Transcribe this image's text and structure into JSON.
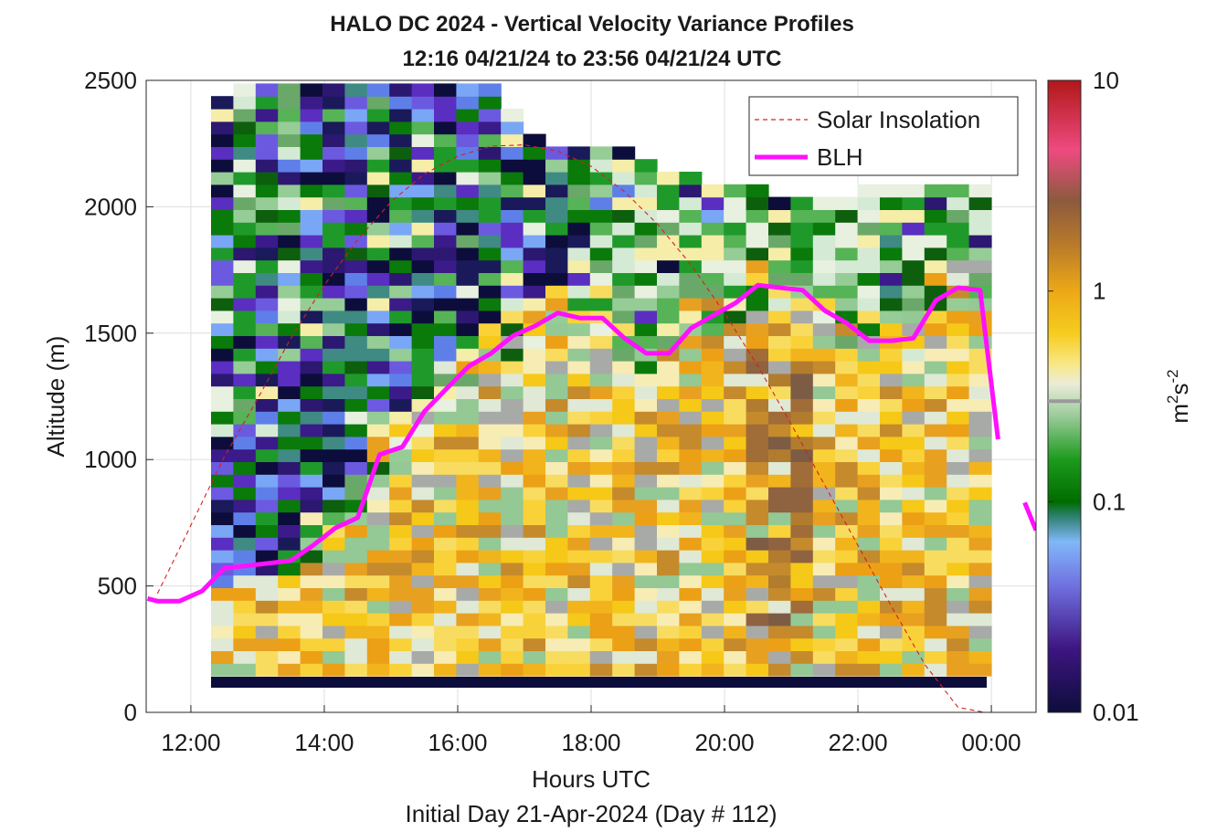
{
  "chart_data": {
    "type": "heatmap",
    "title_line1": "HALO DC 2024 - Vertical Velocity Variance Profiles",
    "title_line2": "12:16 04/21/24 to 23:56 04/21/24  UTC",
    "xlabel": "Hours UTC",
    "xlabel2": "Initial Day 21-Apr-2024 (Day # 112)",
    "ylabel": "Altitude (m)",
    "xlim": [
      11.33,
      24.67
    ],
    "ylim": [
      0,
      2500
    ],
    "x_ticks": [
      12,
      14,
      16,
      18,
      20,
      22,
      24
    ],
    "x_tick_labels": [
      "12:00",
      "14:00",
      "16:00",
      "18:00",
      "20:00",
      "22:00",
      "00:00"
    ],
    "y_ticks": [
      0,
      500,
      1000,
      1500,
      2000,
      2500
    ],
    "y_tick_labels": [
      "0",
      "500",
      "1000",
      "1500",
      "2000",
      "2500"
    ],
    "grid": true,
    "legend_position": "top-right",
    "colorbar": {
      "scale": "log",
      "range": [
        0.01,
        10
      ],
      "ticks": [
        0.01,
        0.1,
        1,
        10
      ],
      "tick_labels": [
        "0.01",
        "0.1",
        "1",
        "10"
      ],
      "label_base": "m",
      "label_exp1": "2",
      "label_mid": "s",
      "label_exp2": "-2",
      "marker_value": 0.3
    },
    "series": [
      {
        "name": "Solar Insolation",
        "style": "dashed",
        "color": "#d42020",
        "x": [
          11.5,
          12.0,
          12.5,
          13.0,
          13.5,
          14.0,
          14.5,
          15.0,
          15.5,
          16.0,
          16.5,
          17.0,
          17.5,
          18.0,
          18.5,
          19.0,
          19.5,
          20.0,
          20.5,
          21.0,
          21.5,
          22.0,
          22.5,
          23.0,
          23.5,
          23.9,
          24.2,
          24.67
        ],
        "y": [
          470,
          740,
          1010,
          1240,
          1480,
          1690,
          1870,
          2020,
          2130,
          2200,
          2240,
          2245,
          2220,
          2160,
          2060,
          1930,
          1770,
          1580,
          1370,
          1140,
          900,
          660,
          420,
          190,
          20,
          0,
          0,
          0
        ]
      },
      {
        "name": "BLH",
        "style": "solid",
        "color": "#ff10ff",
        "segments": [
          {
            "x": [
              11.35,
              11.5,
              11.83,
              12.17,
              12.5,
              12.83,
              13.17,
              13.5,
              13.83,
              14.17,
              14.5,
              14.83,
              15.17,
              15.5,
              15.83,
              16.17,
              16.5,
              16.83,
              17.17,
              17.5,
              17.83,
              18.17,
              18.5,
              18.83,
              19.17,
              19.5,
              19.83,
              20.17,
              20.5,
              20.83,
              21.17,
              21.5,
              21.83,
              22.17,
              22.5,
              22.83,
              23.17,
              23.5,
              23.83,
              24.1
            ],
            "y": [
              450,
              440,
              440,
              480,
              570,
              580,
              590,
              600,
              660,
              730,
              770,
              1020,
              1050,
              1190,
              1280,
              1370,
              1420,
              1490,
              1530,
              1580,
              1560,
              1560,
              1480,
              1420,
              1420,
              1520,
              1570,
              1620,
              1690,
              1680,
              1670,
              1590,
              1540,
              1470,
              1470,
              1480,
              1630,
              1680,
              1670,
              1080
            ]
          },
          {
            "x": [
              24.5,
              24.67
            ],
            "y": [
              830,
              720
            ]
          }
        ]
      }
    ]
  }
}
